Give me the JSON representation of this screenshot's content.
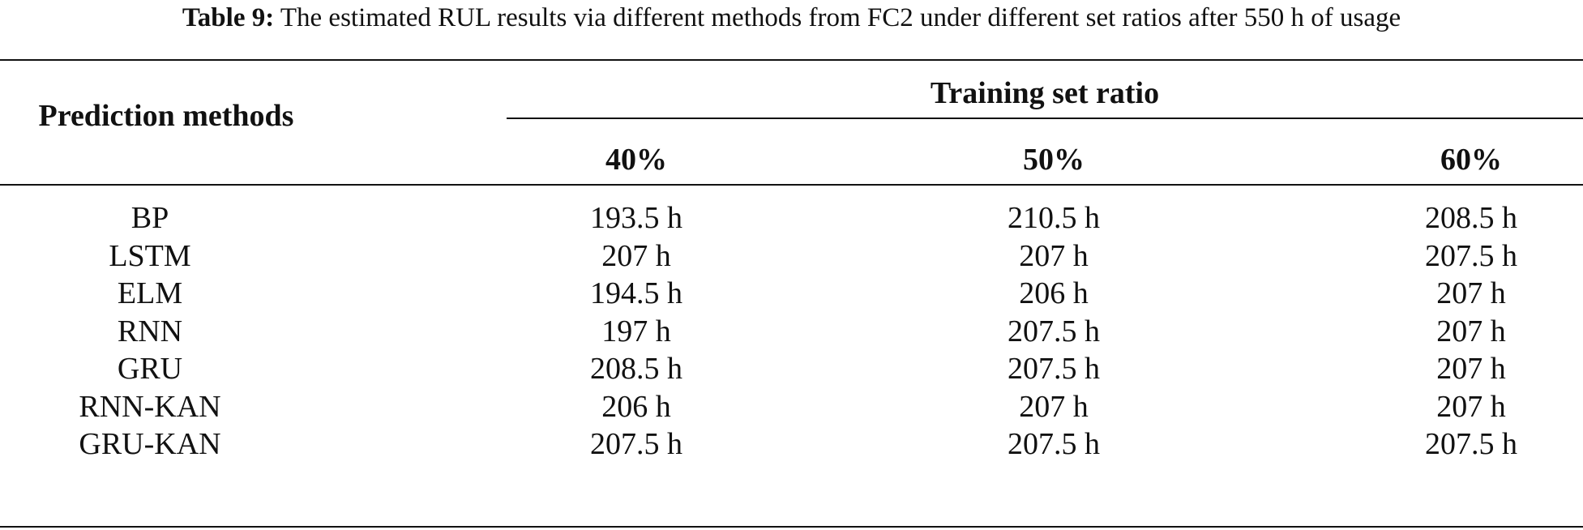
{
  "caption": {
    "label": "Table 9:",
    "text": "The estimated RUL results via different methods from FC2 under different set ratios after 550 h of usage"
  },
  "table": {
    "header": {
      "methods": "Prediction methods",
      "group": "Training set ratio",
      "columns": [
        "40%",
        "50%",
        "60%"
      ]
    },
    "rows": [
      {
        "method": "BP",
        "values": [
          "193.5 h",
          "210.5 h",
          "208.5 h"
        ]
      },
      {
        "method": "LSTM",
        "values": [
          "207 h",
          "207 h",
          "207.5 h"
        ]
      },
      {
        "method": "ELM",
        "values": [
          "194.5 h",
          "206 h",
          "207 h"
        ]
      },
      {
        "method": "RNN",
        "values": [
          "197 h",
          "207.5 h",
          "207 h"
        ]
      },
      {
        "method": "GRU",
        "values": [
          "208.5 h",
          "207.5 h",
          "207 h"
        ]
      },
      {
        "method": "RNN-KAN",
        "values": [
          "206 h",
          "207 h",
          "207 h"
        ]
      },
      {
        "method": "GRU-KAN",
        "values": [
          "207.5 h",
          "207.5 h",
          "207.5 h"
        ]
      }
    ]
  }
}
